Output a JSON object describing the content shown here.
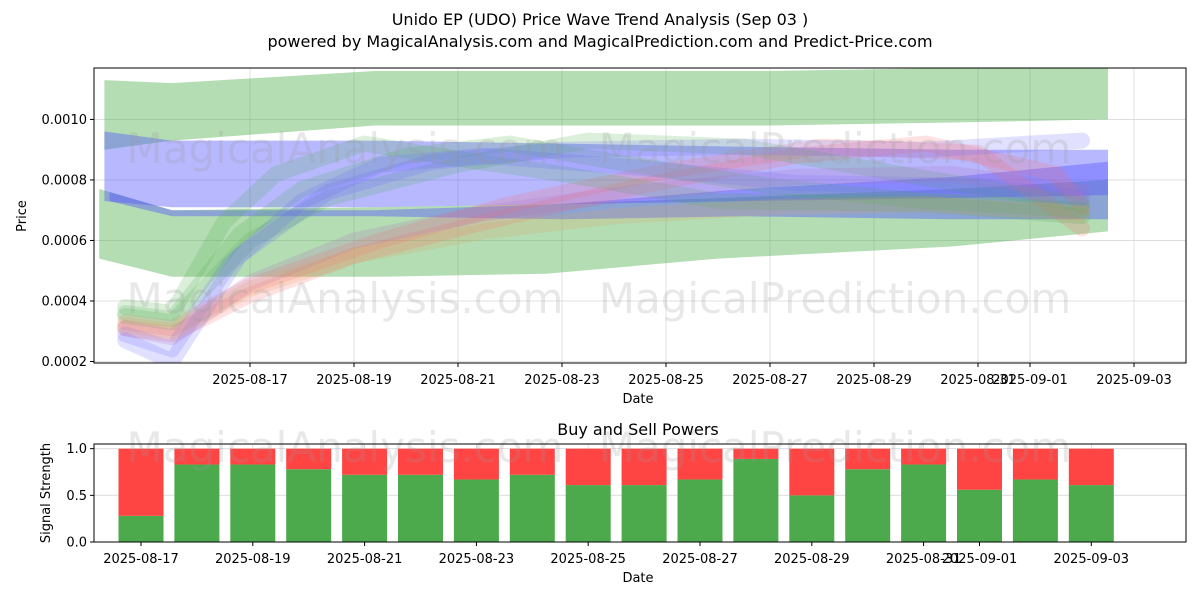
{
  "figure": {
    "title": "Unido EP (UDO) Price Wave Trend Analysis (Sep 03 )",
    "subtitle": "powered by MagicalAnalysis.com and MagicalPrediction.com and Predict-Price.com",
    "watermarks": [
      "MagicalAnalysis.com",
      "MagicalPrediction.com"
    ]
  },
  "chart_data": [
    {
      "type": "area",
      "title": "",
      "xlabel": "Date",
      "ylabel": "Price",
      "xlim": [
        "2025-08-14",
        "2025-09-04"
      ],
      "ylim": [
        0.000195,
        0.00117
      ],
      "y_ticks": [
        0.0002,
        0.0004,
        0.0006,
        0.0008,
        0.001
      ],
      "y_tick_labels": [
        "0.0002",
        "0.0004",
        "0.0006",
        "0.0008",
        "0.0010"
      ],
      "x_ticks": [
        "2025-08-17",
        "2025-08-19",
        "2025-08-21",
        "2025-08-23",
        "2025-08-25",
        "2025-08-27",
        "2025-08-29",
        "2025-08-31",
        "2025-09-01",
        "2025-09-03"
      ],
      "grid": true,
      "series": [
        {
          "name": "green-range-upper",
          "color": "#4daf4a",
          "x": [
            0.2,
            1.5,
            5.4,
            9.0,
            13.0,
            16.5,
            19.5
          ],
          "low": [
            0.0009,
            0.00093,
            0.00098,
            0.00098,
            0.00098,
            0.00099,
            0.001
          ],
          "high": [
            0.00113,
            0.00112,
            0.00116,
            0.00116,
            0.00116,
            0.00117,
            0.00117
          ]
        },
        {
          "name": "green-range-lower",
          "color": "#4daf4a",
          "x": [
            0.1,
            1.5,
            5.4,
            8.7,
            12.0,
            16.5,
            19.5
          ],
          "low": [
            0.00054,
            0.00048,
            0.00048,
            0.00049,
            0.00054,
            0.00058,
            0.00063
          ],
          "high": [
            0.00077,
            0.0007,
            0.00071,
            0.00072,
            0.00074,
            0.00077,
            0.0008
          ]
        },
        {
          "name": "blue-band-upper",
          "color": "#5555ff",
          "x": [
            0.2,
            1.5,
            5.4,
            9.0,
            12.5,
            16.5,
            19.5
          ],
          "low": [
            0.00073,
            0.00071,
            0.00071,
            0.00072,
            0.00073,
            0.00074,
            0.00075
          ],
          "high": [
            0.00096,
            0.00093,
            0.00093,
            0.00092,
            0.00091,
            0.0009,
            0.0009
          ]
        },
        {
          "name": "blue-band-lower",
          "color": "#5555ff",
          "x": [
            0.3,
            1.5,
            5.4,
            9.0,
            12.5,
            16.5,
            19.5
          ],
          "low": [
            0.00073,
            0.00068,
            0.00068,
            0.00067,
            0.00068,
            0.00067,
            0.00067
          ],
          "high": [
            0.00076,
            0.0007,
            0.0007,
            0.00072,
            0.00077,
            0.00081,
            0.00086
          ]
        }
      ],
      "waves": [
        {
          "color": "#ff6b6b",
          "points": [
            [
              0.6,
              0.00031
            ],
            [
              1.5,
              0.00029
            ],
            [
              3.0,
              0.00042
            ],
            [
              5.0,
              0.00055
            ],
            [
              7.5,
              0.00066
            ],
            [
              10.5,
              0.00078
            ],
            [
              13.5,
              0.00088
            ],
            [
              16.0,
              0.00092
            ],
            [
              18.5,
              0.00082
            ],
            [
              19.0,
              0.00071
            ]
          ]
        },
        {
          "color": "#ff6b6b",
          "points": [
            [
              0.6,
              0.00033
            ],
            [
              1.5,
              0.00031
            ],
            [
              3.0,
              0.00045
            ],
            [
              5.5,
              0.0006
            ],
            [
              8.0,
              0.00072
            ],
            [
              11.0,
              0.00083
            ],
            [
              14.0,
              0.00091
            ],
            [
              17.0,
              0.00089
            ],
            [
              19.0,
              0.00064
            ]
          ]
        },
        {
          "color": "#4daf4a",
          "points": [
            [
              0.6,
              0.00038
            ],
            [
              1.5,
              0.00036
            ],
            [
              2.5,
              0.00066
            ],
            [
              3.5,
              0.00082
            ],
            [
              5.2,
              0.00092
            ],
            [
              7.0,
              0.00087
            ],
            [
              9.0,
              0.00082
            ],
            [
              12.0,
              0.00073
            ],
            [
              16.0,
              0.00072
            ],
            [
              19.0,
              0.00068
            ]
          ]
        },
        {
          "color": "#4daf4a",
          "points": [
            [
              0.6,
              0.00036
            ],
            [
              1.5,
              0.00034
            ],
            [
              2.8,
              0.00062
            ],
            [
              4.0,
              0.00077
            ],
            [
              6.0,
              0.00088
            ],
            [
              8.0,
              0.00092
            ],
            [
              10.0,
              0.00086
            ],
            [
              13.0,
              0.00078
            ],
            [
              16.0,
              0.00073
            ],
            [
              19.0,
              0.0007
            ]
          ]
        },
        {
          "color": "#4daf4a",
          "points": [
            [
              0.6,
              0.00035
            ],
            [
              1.5,
              0.00033
            ],
            [
              3.0,
              0.0006
            ],
            [
              4.5,
              0.00074
            ],
            [
              7.0,
              0.00085
            ],
            [
              9.5,
              0.00093
            ],
            [
              12.5,
              0.00091
            ],
            [
              15.5,
              0.00082
            ],
            [
              19.0,
              0.00072
            ]
          ]
        },
        {
          "color": "#6b6bff",
          "points": [
            [
              0.6,
              0.00029
            ],
            [
              1.5,
              0.00024
            ],
            [
              2.6,
              0.00052
            ],
            [
              4.0,
              0.00073
            ],
            [
              5.5,
              0.00085
            ],
            [
              7.5,
              0.00088
            ],
            [
              10.5,
              0.00084
            ],
            [
              13.5,
              0.00079
            ],
            [
              17.0,
              0.00078
            ],
            [
              19.0,
              0.00074
            ]
          ]
        },
        {
          "color": "#6b6bff",
          "points": [
            [
              0.6,
              0.00027
            ],
            [
              1.5,
              0.0002
            ],
            [
              2.8,
              0.00055
            ],
            [
              4.5,
              0.00076
            ],
            [
              6.5,
              0.00086
            ],
            [
              9.0,
              0.0009
            ],
            [
              12.5,
              0.00091
            ],
            [
              16.0,
              0.0009
            ],
            [
              19.0,
              0.00093
            ]
          ]
        },
        {
          "color": "#b070c0",
          "points": [
            [
              0.6,
              0.00031
            ],
            [
              1.5,
              0.00028
            ],
            [
              3.0,
              0.00046
            ],
            [
              5.0,
              0.0006
            ],
            [
              7.5,
              0.00069
            ],
            [
              10.5,
              0.00076
            ],
            [
              13.5,
              0.00081
            ],
            [
              16.5,
              0.00082
            ],
            [
              19.0,
              0.00076
            ]
          ]
        },
        {
          "color": "#e0a060",
          "points": [
            [
              0.6,
              0.00032
            ],
            [
              1.5,
              0.0003
            ],
            [
              3.0,
              0.00044
            ],
            [
              5.0,
              0.00055
            ],
            [
              7.5,
              0.00063
            ],
            [
              10.0,
              0.00068
            ],
            [
              13.0,
              0.00071
            ],
            [
              16.0,
              0.00072
            ],
            [
              19.0,
              0.00069
            ]
          ]
        }
      ]
    },
    {
      "type": "bar",
      "title": "Buy and Sell Powers",
      "xlabel": "Date",
      "ylabel": "Signal Strength",
      "ylim": [
        0,
        1.05
      ],
      "y_ticks": [
        0.0,
        0.5,
        1.0
      ],
      "y_tick_labels": [
        "0.0",
        "0.5",
        "1.0"
      ],
      "x_ticks": [
        "2025-08-17",
        "2025-08-19",
        "2025-08-21",
        "2025-08-23",
        "2025-08-25",
        "2025-08-27",
        "2025-08-29",
        "2025-08-31",
        "2025-09-01",
        "2025-09-03"
      ],
      "categories": [
        "2025-08-17",
        "2025-08-18",
        "2025-08-19",
        "2025-08-20",
        "2025-08-21",
        "2025-08-22",
        "2025-08-23",
        "2025-08-24",
        "2025-08-25",
        "2025-08-26",
        "2025-08-27",
        "2025-08-28",
        "2025-08-29",
        "2025-08-30",
        "2025-08-31",
        "2025-09-01",
        "2025-09-02",
        "2025-09-03"
      ],
      "series": [
        {
          "name": "Buy",
          "color": "#4caa4c",
          "values": [
            0.28,
            0.83,
            0.83,
            0.78,
            0.72,
            0.72,
            0.67,
            0.72,
            0.61,
            0.61,
            0.67,
            0.89,
            0.5,
            0.78,
            0.83,
            0.56,
            0.67,
            0.61
          ]
        },
        {
          "name": "Sell",
          "color": "#ff4444",
          "values": [
            0.72,
            0.17,
            0.17,
            0.22,
            0.28,
            0.28,
            0.33,
            0.28,
            0.39,
            0.39,
            0.33,
            0.11,
            0.5,
            0.22,
            0.17,
            0.44,
            0.33,
            0.39
          ]
        }
      ]
    }
  ]
}
